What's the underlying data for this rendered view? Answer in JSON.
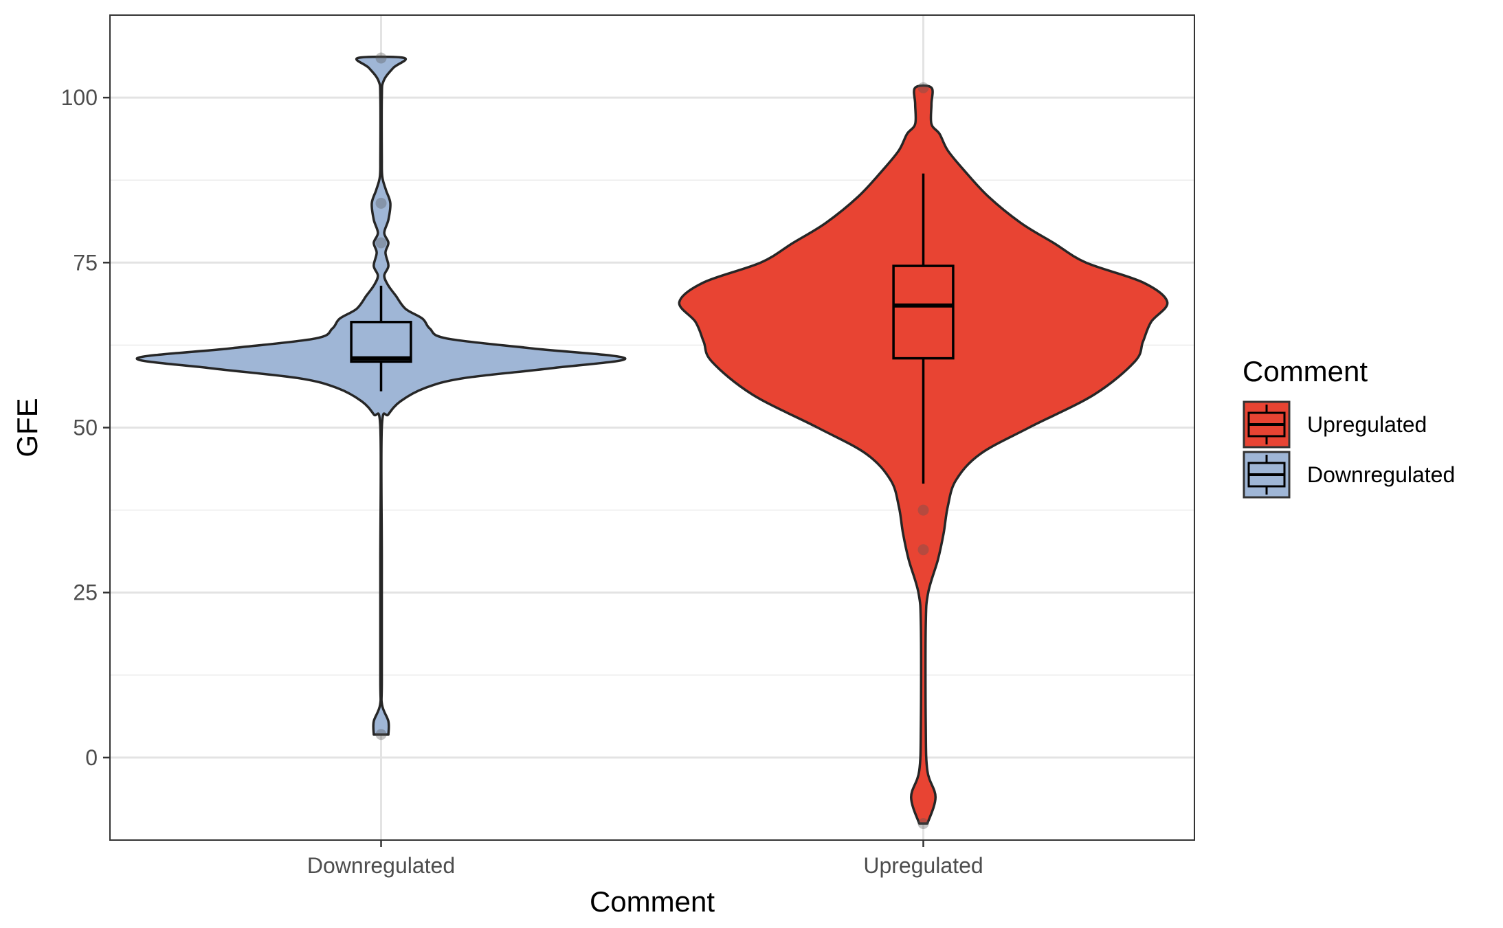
{
  "chart_data": {
    "type": "violin",
    "title": "",
    "xlabel": "Comment",
    "ylabel": "GFE",
    "categories": [
      "Downregulated",
      "Upregulated"
    ],
    "ylim": [
      -12.5,
      112.5
    ],
    "yticks": [
      0,
      25,
      50,
      75,
      100
    ],
    "grid": true,
    "legend": {
      "title": "Comment",
      "position": "right",
      "entries": [
        {
          "label": "Upregulated",
          "color": "#e84433"
        },
        {
          "label": "Downregulated",
          "color": "#9fb6d6"
        }
      ]
    },
    "series": [
      {
        "category": "Downregulated",
        "color": "#9fb6d6",
        "box": {
          "whisker_low": 55.5,
          "q1": 60.0,
          "median": 60.5,
          "q3": 66.0,
          "whisker_high": 71.5
        },
        "outliers": [
          106,
          84,
          78,
          3.5
        ],
        "density": [
          [
            3.5,
            0.03
          ],
          [
            5.5,
            0.03
          ],
          [
            8,
            0.004
          ],
          [
            12,
            0.003
          ],
          [
            30,
            0.003
          ],
          [
            50,
            0.003
          ],
          [
            52,
            0.03
          ],
          [
            54,
            0.08
          ],
          [
            56,
            0.18
          ],
          [
            57.5,
            0.34
          ],
          [
            59,
            0.7
          ],
          [
            60.5,
            1.0
          ],
          [
            62,
            0.62
          ],
          [
            63.5,
            0.27
          ],
          [
            65,
            0.2
          ],
          [
            66.5,
            0.17
          ],
          [
            68,
            0.1
          ],
          [
            70,
            0.06
          ],
          [
            71.5,
            0.03
          ],
          [
            73,
            0.013
          ],
          [
            74.5,
            0.03
          ],
          [
            76.5,
            0.018
          ],
          [
            78,
            0.03
          ],
          [
            79.5,
            0.013
          ],
          [
            81.5,
            0.03
          ],
          [
            84,
            0.038
          ],
          [
            86,
            0.02
          ],
          [
            88,
            0.005
          ],
          [
            91,
            0.003
          ],
          [
            100,
            0.003
          ],
          [
            102.5,
            0.01
          ],
          [
            104.5,
            0.05
          ],
          [
            106,
            0.095
          ]
        ]
      },
      {
        "category": "Upregulated",
        "color": "#e84433",
        "box": {
          "whisker_low": 41.5,
          "q1": 60.5,
          "median": 68.5,
          "q3": 74.5,
          "whisker_high": 88.5
        },
        "outliers": [
          101.5,
          37.5,
          31.5,
          -10
        ],
        "density": [
          [
            -10,
            0.005
          ],
          [
            -6,
            0.015
          ],
          [
            -2,
            0.005
          ],
          [
            5,
            0.003
          ],
          [
            20,
            0.003
          ],
          [
            25,
            0.006
          ],
          [
            30,
            0.018
          ],
          [
            34,
            0.025
          ],
          [
            38,
            0.03
          ],
          [
            42,
            0.04
          ],
          [
            46,
            0.07
          ],
          [
            50,
            0.13
          ],
          [
            55,
            0.21
          ],
          [
            60,
            0.26
          ],
          [
            63,
            0.27
          ],
          [
            66,
            0.28
          ],
          [
            69,
            0.3
          ],
          [
            72,
            0.27
          ],
          [
            75,
            0.2
          ],
          [
            78,
            0.16
          ],
          [
            81,
            0.12
          ],
          [
            85,
            0.08
          ],
          [
            89,
            0.05
          ],
          [
            92,
            0.03
          ],
          [
            94.5,
            0.02
          ],
          [
            96,
            0.01
          ],
          [
            99,
            0.01
          ],
          [
            101.5,
            0.01
          ]
        ]
      }
    ]
  }
}
